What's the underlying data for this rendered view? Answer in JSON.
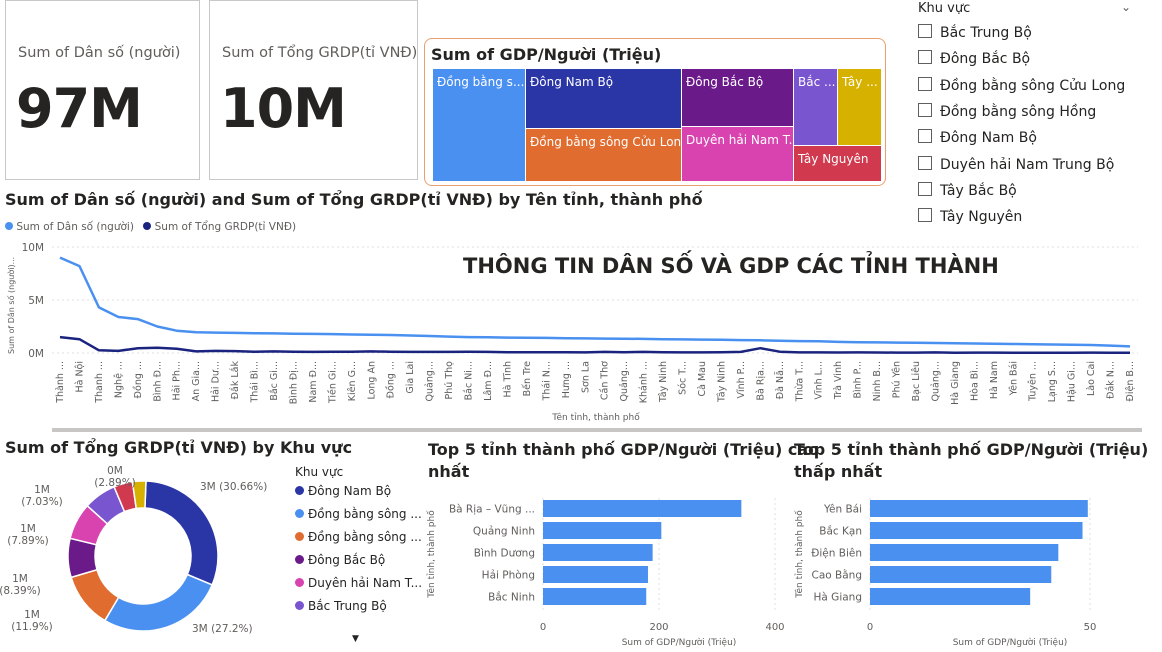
{
  "kpi": [
    {
      "label": "Sum of Dân số (người)",
      "value": "97M"
    },
    {
      "label": "Sum of Tổng GRDP(tỉ VNĐ)",
      "value": "10M"
    }
  ],
  "treemap": {
    "title": "Sum of GDP/Người (Triệu)",
    "tiles": [
      {
        "label": "Đồng bằng s...",
        "color": "#4a90f0"
      },
      {
        "label": "Đông Nam Bộ",
        "color": "#2a35a6"
      },
      {
        "label": "Đồng bằng sông Cửu Long",
        "color": "#e06c2f"
      },
      {
        "label": "Đông Bắc Bộ",
        "color": "#6b1a8a"
      },
      {
        "label": "Duyên hải Nam T...",
        "color": "#d843b0"
      },
      {
        "label": "Bắc ...",
        "color": "#7a55d0"
      },
      {
        "label": "Tây ...",
        "color": "#d6b100"
      },
      {
        "label": "Tây Nguyên",
        "color": "#d0394e"
      }
    ]
  },
  "slicer": {
    "title": "Khu vực",
    "items": [
      "Bắc Trung Bộ",
      "Đông Bắc Bộ",
      "Đồng bằng sông Cửu Long",
      "Đồng bằng sông Hồng",
      "Đông Nam Bộ",
      "Duyên hải Nam Trung Bộ",
      "Tây Bắc Bộ",
      "Tây Nguyên"
    ]
  },
  "banner": "THÔNG TIN DÂN SỐ VÀ GDP CÁC TỈNH THÀNH",
  "colors": {
    "series1": "#4a90f0",
    "series2": "#1a237e",
    "bar": "#4a90f0"
  },
  "line_title": "Sum of Dân số (người) and Sum of Tổng GRDP(tỉ VNĐ) by Tên tỉnh, thành phố",
  "donut_title": "Sum of Tổng GRDP(tỉ VNĐ) by Khu vực",
  "donut_legend_title": "Khu vực",
  "top5_high_title_1": "Top 5 tỉnh thành phố GDP/Người (Triệu) cao",
  "top5_high_title_2": "nhất",
  "top5_low_title_1": "Top 5 tỉnh thành phố GDP/Người (Triệu)",
  "top5_low_title_2": "thấp nhất",
  "chart_data": [
    {
      "type": "line",
      "title": "Sum of Dân số (người) and Sum of Tổng GRDP(tỉ VNĐ) by Tên tỉnh, thành phố",
      "xlabel": "Tên tỉnh, thành phố",
      "ylabel": "Sum of Dân số (người)...",
      "yticks": [
        "0M",
        "5M",
        "10M"
      ],
      "ylim": [
        0,
        10
      ],
      "legend": "top-left",
      "x": [
        "Thành ...",
        "Hà Nội",
        "Thanh ...",
        "Nghệ ...",
        "Đồng ...",
        "Bình Đ...",
        "Hải Ph...",
        "An Gia...",
        "Hải Dư...",
        "Đắk Lắk",
        "Thái Bì...",
        "Bắc Gi...",
        "Bình Đị...",
        "Nam Đ...",
        "Tiền Gi...",
        "Kiên G...",
        "Long An",
        "Đồng ...",
        "Gia Lai",
        "Quảng...",
        "Phú Thọ",
        "Bắc Ni...",
        "Lâm Đ...",
        "Hà Tĩnh",
        "Bến Tre",
        "Thái N...",
        "Hưng ...",
        "Sơn La",
        "Cần Thơ",
        "Quảng...",
        "Khánh ...",
        "Tây Ninh",
        "Sóc T...",
        "Cà Mau",
        "Tây Ninh",
        "Vĩnh P...",
        "Bà Rịa...",
        "Đà Nẵ...",
        "Thừa T...",
        "Vĩnh L...",
        "Trà Vinh",
        "Bình P...",
        "Ninh B...",
        "Phú Yên",
        "Bạc Liêu",
        "Quảng...",
        "Hà Giang",
        "Hòa Bì...",
        "Hà Nam",
        "Yên Bái",
        "Tuyên ...",
        "Lạng S...",
        "Hậu Gi...",
        "Lào Cai",
        "Đắk N...",
        "Điện B..."
      ],
      "series": [
        {
          "name": "Sum of Dân số (người)",
          "color": "#4a90f0",
          "values": [
            9.0,
            8.2,
            4.3,
            3.4,
            3.2,
            2.5,
            2.1,
            1.95,
            1.92,
            1.9,
            1.87,
            1.85,
            1.82,
            1.8,
            1.78,
            1.75,
            1.72,
            1.7,
            1.65,
            1.6,
            1.55,
            1.5,
            1.48,
            1.45,
            1.43,
            1.42,
            1.4,
            1.38,
            1.36,
            1.35,
            1.33,
            1.3,
            1.28,
            1.26,
            1.25,
            1.22,
            1.2,
            1.15,
            1.12,
            1.1,
            1.05,
            1.02,
            1.0,
            0.98,
            0.96,
            0.94,
            0.92,
            0.9,
            0.88,
            0.85,
            0.82,
            0.8,
            0.78,
            0.75,
            0.7,
            0.62
          ]
        },
        {
          "name": "Sum of Tổng GRDP(tỉ VNĐ)",
          "color": "#1a237e",
          "values": [
            1.5,
            1.3,
            0.25,
            0.2,
            0.45,
            0.5,
            0.4,
            0.15,
            0.2,
            0.18,
            0.12,
            0.15,
            0.12,
            0.1,
            0.12,
            0.12,
            0.15,
            0.12,
            0.1,
            0.1,
            0.1,
            0.12,
            0.1,
            0.08,
            0.08,
            0.08,
            0.08,
            0.06,
            0.1,
            0.08,
            0.1,
            0.08,
            0.06,
            0.06,
            0.08,
            0.1,
            0.45,
            0.12,
            0.06,
            0.06,
            0.05,
            0.06,
            0.05,
            0.04,
            0.04,
            0.06,
            0.03,
            0.04,
            0.04,
            0.03,
            0.03,
            0.03,
            0.03,
            0.04,
            0.03,
            0.02
          ]
        }
      ]
    },
    {
      "type": "pie",
      "title": "Sum of Tổng GRDP(tỉ VNĐ) by Khu vực",
      "legend": "right",
      "slices": [
        {
          "name": "Đông Nam Bộ",
          "pct": 30.66,
          "label": "3M (30.66%)",
          "color": "#2a35a6"
        },
        {
          "name": "Đồng bằng sông Hồng",
          "pct": 27.2,
          "label": "3M (27.2%)",
          "color": "#4a90f0"
        },
        {
          "name": "Đồng bằng sông Cửu Long",
          "pct": 11.9,
          "label": "1M (11.9%)",
          "color": "#e06c2f"
        },
        {
          "name": "Đông Bắc Bộ",
          "pct": 8.39,
          "label": "1M (8.39%)",
          "color": "#6b1a8a"
        },
        {
          "name": "Duyên hải Nam Trung Bộ",
          "pct": 7.89,
          "label": "1M (7.89%)",
          "color": "#d843b0"
        },
        {
          "name": "Bắc Trung Bộ",
          "pct": 7.03,
          "label": "1M (7.03%)",
          "color": "#7a55d0"
        },
        {
          "name": "Tây Nguyên",
          "pct": 4.04,
          "label": "",
          "color": "#d0394e"
        },
        {
          "name": "Tây Bắc Bộ",
          "pct": 2.89,
          "label": "0M (2.89%)",
          "color": "#d6b100"
        }
      ],
      "legend_items": [
        "Đông Nam Bộ",
        "Đồng bằng sông ...",
        "Đồng bằng sông ...",
        "Đông Bắc Bộ",
        "Duyên hải Nam T...",
        "Bắc Trung Bộ"
      ]
    },
    {
      "type": "bar",
      "orientation": "horizontal",
      "title": "Top 5 tỉnh thành phố GDP/Người (Triệu) cao nhất",
      "xlabel": "Sum of GDP/Người (Triệu)",
      "ylabel": "Tên tỉnh, thành phố",
      "categories": [
        "Bà Rịa – Vũng ...",
        "Quảng Ninh",
        "Bình Dương",
        "Hải Phòng",
        "Bắc Ninh"
      ],
      "values": [
        342,
        204,
        189,
        181,
        178
      ],
      "xlim": [
        0,
        400
      ],
      "xticks": [
        "0",
        "200",
        "400"
      ]
    },
    {
      "type": "bar",
      "orientation": "horizontal",
      "title": "Top 5 tỉnh thành phố GDP/Người (Triệu) thấp nhất",
      "xlabel": "Sum of GDP/Người (Triệu)",
      "ylabel": "Tên tỉnh, thành phố",
      "categories": [
        "Yên Bái",
        "Bắc Kạn",
        "Điện Biên",
        "Cao Bằng",
        "Hà Giang"
      ],
      "values": [
        49.5,
        48.3,
        42.8,
        41.2,
        36.4
      ],
      "xlim": [
        0,
        50
      ],
      "xticks": [
        "0",
        "50"
      ]
    }
  ]
}
